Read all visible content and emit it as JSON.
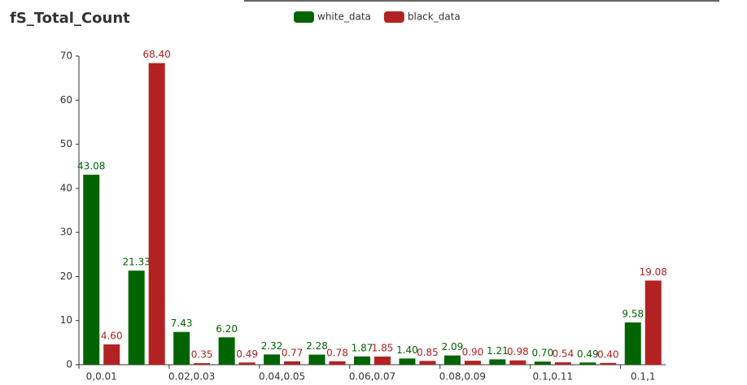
{
  "chart_data": {
    "type": "bar",
    "title": "fS_Total_Count",
    "categories": [
      "0,0.01",
      null,
      "0.02,0.03",
      null,
      "0.04,0.05",
      null,
      "0.06,0.07",
      null,
      "0.08,0.09",
      null,
      "0.1,0.11",
      null,
      "0.1,1"
    ],
    "series": [
      {
        "name": "white_data",
        "color": "#006400",
        "values": [
          43.08,
          21.33,
          7.43,
          6.2,
          2.32,
          2.28,
          1.87,
          1.4,
          2.09,
          1.21,
          0.7,
          0.49,
          9.58
        ],
        "value_labels": [
          "43.08",
          "21.33",
          "7.43",
          "6.20",
          "2.32",
          "2.28",
          "1.87",
          "1.40",
          "2.09",
          "1.21",
          "0.70",
          "0.49",
          "9.58"
        ]
      },
      {
        "name": "black_data",
        "color": "#b22222",
        "values": [
          4.6,
          68.4,
          0.35,
          0.49,
          0.77,
          0.78,
          1.85,
          0.85,
          0.9,
          0.98,
          0.54,
          0.4,
          19.08
        ],
        "value_labels": [
          "4.60",
          "68.40",
          "0.35",
          "0.49",
          "0.77",
          "0.78",
          "1.85",
          "0.85",
          "0.90",
          "0.98",
          "0.54",
          "0.40",
          "19.08"
        ]
      }
    ],
    "ylim": [
      0,
      70
    ],
    "yticks": [
      0,
      10,
      20,
      30,
      40,
      50,
      60,
      70
    ],
    "grid": false,
    "legend": "top"
  }
}
